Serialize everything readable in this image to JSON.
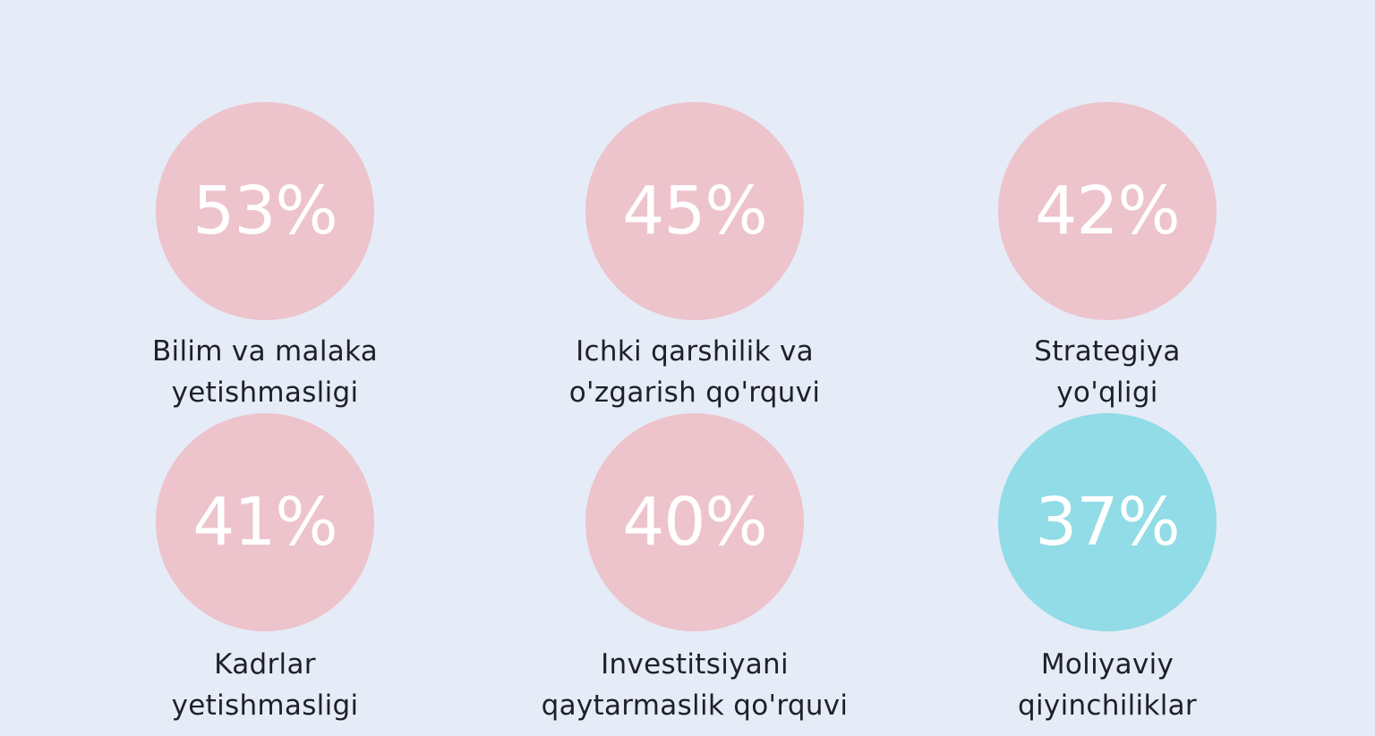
{
  "colors": {
    "background": "#e5ecf7",
    "circle_default": "#edc3cc",
    "circle_highlight": "#91dce6",
    "value_text": "#ffffff",
    "label_text": "#1f1f2b"
  },
  "stats": [
    {
      "value": "53%",
      "percent": 53,
      "label_lines": [
        "Bilim va malaka",
        "yetishmasligi"
      ],
      "highlight": false
    },
    {
      "value": "45%",
      "percent": 45,
      "label_lines": [
        "Ichki qarshilik va",
        "o'zgarish qo'rquvi"
      ],
      "highlight": false
    },
    {
      "value": "42%",
      "percent": 42,
      "label_lines": [
        "Strategiya",
        "yo'qligi"
      ],
      "highlight": false
    },
    {
      "value": "41%",
      "percent": 41,
      "label_lines": [
        "Kadrlar",
        "yetishmasligi"
      ],
      "highlight": false
    },
    {
      "value": "40%",
      "percent": 40,
      "label_lines": [
        "Investitsiyani",
        "qaytarmaslik qo'rquvi"
      ],
      "highlight": false
    },
    {
      "value": "37%",
      "percent": 37,
      "label_lines": [
        "Moliyaviy",
        "qiyinchiliklar"
      ],
      "highlight": true
    }
  ]
}
